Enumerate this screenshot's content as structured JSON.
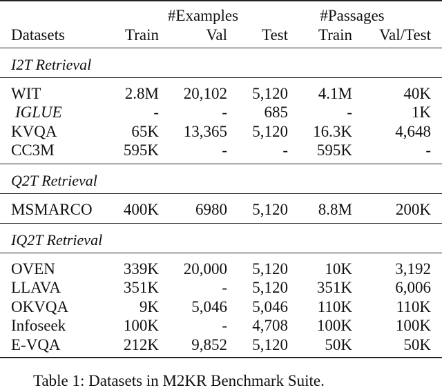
{
  "header": {
    "group_examples": "#Examples",
    "group_passages": "#Passages",
    "columns": [
      "Datasets",
      "Train",
      "Val",
      "Test",
      "Train",
      "Val/Test"
    ]
  },
  "sections": [
    {
      "title": "I2T Retrieval",
      "rows": [
        {
          "name": "WIT",
          "italic": false,
          "values": [
            "2.8M",
            "20,102",
            "5,120",
            "4.1M",
            "40K"
          ]
        },
        {
          "name": "IGLUE",
          "italic": true,
          "values": [
            "-",
            "-",
            "685",
            "-",
            "1K"
          ]
        },
        {
          "name": "KVQA",
          "italic": false,
          "values": [
            "65K",
            "13,365",
            "5,120",
            "16.3K",
            "4,648"
          ]
        },
        {
          "name": "CC3M",
          "italic": false,
          "values": [
            "595K",
            "-",
            "-",
            "595K",
            "-"
          ]
        }
      ]
    },
    {
      "title": "Q2T Retrieval",
      "rows": [
        {
          "name": "MSMARCO",
          "italic": false,
          "values": [
            "400K",
            "6980",
            "5,120",
            "8.8M",
            "200K"
          ]
        }
      ]
    },
    {
      "title": "IQ2T Retrieval",
      "rows": [
        {
          "name": "OVEN",
          "italic": false,
          "values": [
            "339K",
            "20,000",
            "5,120",
            "10K",
            "3,192"
          ]
        },
        {
          "name": "LLAVA",
          "italic": false,
          "values": [
            "351K",
            "-",
            "5,120",
            "351K",
            "6,006"
          ]
        },
        {
          "name": "OKVQA",
          "italic": false,
          "values": [
            "9K",
            "5,046",
            "5,046",
            "110K",
            "110K"
          ]
        },
        {
          "name": "Infoseek",
          "italic": false,
          "values": [
            "100K",
            "-",
            "4,708",
            "100K",
            "100K"
          ]
        },
        {
          "name": "E-VQA",
          "italic": false,
          "values": [
            "212K",
            "9,852",
            "5,120",
            "50K",
            "50K"
          ]
        }
      ]
    }
  ],
  "caption": "Table 1: Datasets in M2KR Benchmark Suite."
}
